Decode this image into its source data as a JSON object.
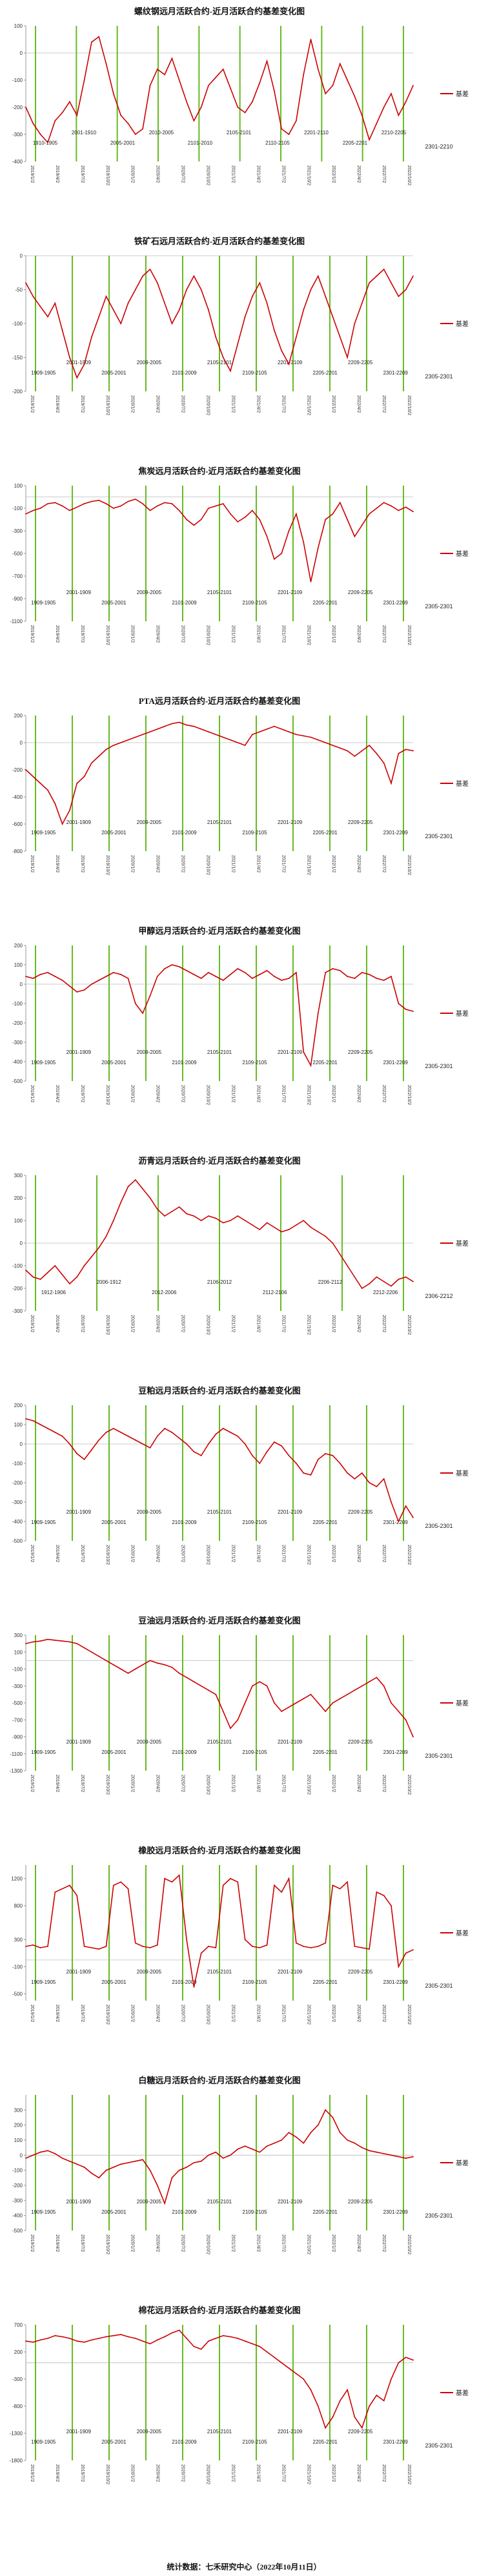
{
  "chart_data": [
    {
      "type": "line",
      "title": "螺纹钢远月活跃合约-近月活跃合约基差变化图",
      "ylim": [
        -400,
        100
      ],
      "yticks": [
        100,
        0,
        -100,
        -200,
        -300,
        -400
      ],
      "grid": false,
      "legend_position": "right",
      "series": [
        {
          "name": "基差",
          "color": "#cc0000",
          "values": [
            -200,
            -260,
            -300,
            -330,
            -250,
            -220,
            -180,
            -230,
            -100,
            40,
            60,
            -40,
            -150,
            -230,
            -260,
            -300,
            -280,
            -120,
            -60,
            -80,
            -20,
            -100,
            -180,
            -250,
            -200,
            -120,
            -90,
            -60,
            -130,
            -200,
            -220,
            -180,
            -110,
            -30,
            -140,
            -280,
            -300,
            -250,
            -80,
            50,
            -60,
            -150,
            -120,
            -40,
            -100,
            -160,
            -230,
            -320,
            -260,
            -200,
            -150,
            -230,
            -180,
            -120
          ]
        }
      ],
      "rolls": [
        "1910-1905",
        "2001-1910",
        "2005-2001",
        "2010-2005",
        "2101-2010",
        "2105-2101",
        "2110-2105",
        "2201-2110",
        "2205-2201",
        "2210-2205",
        "2301-2210"
      ]
    },
    {
      "type": "line",
      "title": "铁矿石远月活跃合约-近月活跃合约基差变化图",
      "ylim": [
        -200,
        0
      ],
      "yticks": [
        0,
        -50,
        -100,
        -150,
        -200
      ],
      "grid": false,
      "legend_position": "right",
      "series": [
        {
          "name": "基差",
          "color": "#cc0000",
          "values": [
            -40,
            -60,
            -75,
            -90,
            -70,
            -110,
            -150,
            -180,
            -160,
            -120,
            -90,
            -60,
            -80,
            -100,
            -70,
            -50,
            -30,
            -20,
            -40,
            -70,
            -100,
            -80,
            -50,
            -30,
            -50,
            -80,
            -120,
            -150,
            -170,
            -130,
            -90,
            -60,
            -40,
            -70,
            -110,
            -140,
            -160,
            -120,
            -80,
            -50,
            -30,
            -60,
            -90,
            -120,
            -150,
            -100,
            -70,
            -40,
            -30,
            -20,
            -40,
            -60,
            -50,
            -30
          ]
        }
      ],
      "rolls": [
        "1909-1905",
        "2001-1909",
        "2005-2001",
        "2009-2005",
        "2101-2009",
        "2105-2101",
        "2109-2105",
        "2201-2109",
        "2205-2201",
        "2209-2205",
        "2301-2209",
        "2305-2301"
      ]
    },
    {
      "type": "line",
      "title": "焦炭远月活跃合约-近月活跃合约基差变化图",
      "ylim": [
        -1100,
        100
      ],
      "yticks": [
        100,
        -100,
        -300,
        -500,
        -700,
        -900,
        -1100
      ],
      "grid": false,
      "legend_position": "right",
      "series": [
        {
          "name": "基差",
          "color": "#cc0000",
          "values": [
            -150,
            -120,
            -100,
            -60,
            -50,
            -80,
            -120,
            -90,
            -60,
            -40,
            -30,
            -60,
            -100,
            -80,
            -40,
            -20,
            -60,
            -120,
            -80,
            -50,
            -60,
            -120,
            -200,
            -250,
            -200,
            -100,
            -80,
            -60,
            -150,
            -220,
            -180,
            -120,
            -200,
            -350,
            -550,
            -500,
            -300,
            -150,
            -400,
            -750,
            -450,
            -200,
            -150,
            -50,
            -200,
            -350,
            -250,
            -150,
            -100,
            -50,
            -80,
            -120,
            -90,
            -130
          ]
        }
      ],
      "rolls": [
        "1909-1905",
        "2001-1909",
        "2005-2001",
        "2009-2005",
        "2101-2009",
        "2105-2101",
        "2109-2105",
        "2201-2109",
        "2205-2201",
        "2209-2205",
        "2301-2209",
        "2305-2301"
      ]
    },
    {
      "type": "line",
      "title": "PTA远月活跃合约-近月活跃合约基差变化图",
      "ylim": [
        -800,
        200
      ],
      "yticks": [
        200,
        0,
        -200,
        -400,
        -600,
        -800
      ],
      "grid": false,
      "legend_position": "right",
      "series": [
        {
          "name": "基差",
          "color": "#cc0000",
          "values": [
            -200,
            -250,
            -300,
            -350,
            -450,
            -600,
            -500,
            -300,
            -250,
            -150,
            -100,
            -50,
            -20,
            0,
            20,
            40,
            60,
            80,
            100,
            120,
            140,
            150,
            130,
            120,
            100,
            80,
            60,
            40,
            20,
            0,
            -20,
            60,
            80,
            100,
            120,
            100,
            80,
            60,
            50,
            40,
            20,
            0,
            -20,
            -40,
            -60,
            -100,
            -60,
            -20,
            -80,
            -150,
            -300,
            -80,
            -50,
            -60
          ]
        }
      ],
      "rolls": [
        "1909-1905",
        "2001-1909",
        "2005-2001",
        "2009-2005",
        "2101-2009",
        "2105-2101",
        "2109-2105",
        "2201-2109",
        "2205-2201",
        "2209-2205",
        "2301-2209",
        "2305-2301"
      ]
    },
    {
      "type": "line",
      "title": "甲醇远月活跃合约-近月活跃合约基差变化图",
      "ylim": [
        -500,
        200
      ],
      "yticks": [
        200,
        100,
        0,
        -100,
        -200,
        -300,
        -400,
        -500
      ],
      "grid": false,
      "legend_position": "right",
      "series": [
        {
          "name": "基差",
          "color": "#cc0000",
          "values": [
            40,
            30,
            50,
            60,
            40,
            20,
            -10,
            -40,
            -30,
            0,
            20,
            40,
            60,
            50,
            30,
            -100,
            -150,
            -60,
            40,
            80,
            100,
            90,
            70,
            50,
            30,
            60,
            40,
            20,
            50,
            80,
            60,
            30,
            50,
            70,
            40,
            20,
            30,
            60,
            -350,
            -420,
            -150,
            60,
            80,
            70,
            40,
            30,
            60,
            50,
            30,
            20,
            40,
            -100,
            -130,
            -140
          ]
        }
      ],
      "rolls": [
        "1909-1905",
        "2001-1909",
        "2005-2001",
        "2009-2005",
        "2101-2009",
        "2105-2101",
        "2109-2105",
        "2201-2109",
        "2205-2201",
        "2209-2205",
        "2301-2209",
        "2305-2301"
      ]
    },
    {
      "type": "line",
      "title": "沥青远月活跃合约-近月活跃合约基差变化图",
      "ylim": [
        -300,
        300
      ],
      "yticks": [
        300,
        200,
        100,
        0,
        -100,
        -200,
        -300
      ],
      "grid": false,
      "legend_position": "right",
      "series": [
        {
          "name": "基差",
          "color": "#cc0000",
          "values": [
            -120,
            -150,
            -160,
            -130,
            -100,
            -140,
            -180,
            -150,
            -100,
            -60,
            -20,
            30,
            100,
            180,
            250,
            280,
            240,
            200,
            150,
            120,
            140,
            160,
            130,
            120,
            100,
            120,
            110,
            90,
            100,
            120,
            100,
            80,
            60,
            90,
            70,
            50,
            60,
            80,
            100,
            70,
            50,
            30,
            0,
            -50,
            -100,
            -150,
            -200,
            -180,
            -150,
            -170,
            -190,
            -160,
            -150,
            -170
          ]
        }
      ],
      "rolls": [
        "1912-1906",
        "2006-1912",
        "2012-2006",
        "2106-2012",
        "2112-2106",
        "2206-2112",
        "2212-2206",
        "2306-2212"
      ]
    },
    {
      "type": "line",
      "title": "豆粕远月活跃合约-近月活跃合约基差变化图",
      "ylim": [
        -500,
        200
      ],
      "yticks": [
        200,
        100,
        0,
        -100,
        -200,
        -300,
        -400,
        -500
      ],
      "grid": false,
      "legend_position": "right",
      "series": [
        {
          "name": "基差",
          "color": "#cc0000",
          "values": [
            130,
            120,
            100,
            80,
            60,
            40,
            0,
            -50,
            -80,
            -30,
            20,
            60,
            80,
            60,
            40,
            20,
            0,
            -20,
            40,
            80,
            60,
            30,
            0,
            -40,
            -60,
            0,
            50,
            80,
            60,
            40,
            0,
            -60,
            -100,
            -40,
            10,
            -10,
            -60,
            -100,
            -150,
            -160,
            -80,
            -50,
            -60,
            -100,
            -150,
            -180,
            -150,
            -200,
            -220,
            -180,
            -300,
            -400,
            -320,
            -380
          ]
        }
      ],
      "rolls": [
        "1909-1905",
        "2001-1909",
        "2005-2001",
        "2009-2005",
        "2101-2009",
        "2105-2101",
        "2109-2105",
        "2201-2109",
        "2205-2201",
        "2209-2205",
        "2301-2209",
        "2305-2301"
      ]
    },
    {
      "type": "line",
      "title": "豆油远月活跃合约-近月活跃合约基差变化图",
      "ylim": [
        -1300,
        300
      ],
      "yticks": [
        300,
        100,
        -100,
        -300,
        -500,
        -700,
        -900,
        -1100,
        -1300
      ],
      "grid": false,
      "legend_position": "right",
      "series": [
        {
          "name": "基差",
          "color": "#cc0000",
          "values": [
            200,
            220,
            230,
            250,
            240,
            230,
            220,
            200,
            150,
            100,
            50,
            0,
            -50,
            -100,
            -150,
            -100,
            -50,
            0,
            -30,
            -50,
            -80,
            -150,
            -200,
            -250,
            -300,
            -350,
            -400,
            -600,
            -800,
            -700,
            -500,
            -300,
            -250,
            -300,
            -500,
            -600,
            -550,
            -500,
            -450,
            -400,
            -500,
            -600,
            -500,
            -450,
            -400,
            -350,
            -300,
            -250,
            -200,
            -300,
            -500,
            -600,
            -700,
            -900
          ]
        }
      ],
      "rolls": [
        "1909-1905",
        "2001-1909",
        "2005-2001",
        "2009-2005",
        "2101-2009",
        "2105-2101",
        "2109-2105",
        "2201-2109",
        "2205-2201",
        "2209-2205",
        "2301-2209",
        "2305-2301"
      ]
    },
    {
      "type": "line",
      "title": "橡胶远月活跃合约-近月活跃合约基差变化图",
      "ylim": [
        -600,
        1400
      ],
      "yticks": [
        1200,
        800,
        300,
        -100,
        -500
      ],
      "grid": false,
      "legend_position": "right",
      "series": [
        {
          "name": "基差",
          "color": "#cc0000",
          "values": [
            200,
            220,
            180,
            200,
            1000,
            1050,
            1100,
            950,
            200,
            180,
            160,
            200,
            1100,
            1150,
            1050,
            250,
            200,
            180,
            220,
            1200,
            1150,
            1250,
            300,
            -400,
            100,
            200,
            180,
            1100,
            1200,
            1150,
            300,
            200,
            180,
            220,
            1100,
            1000,
            1200,
            250,
            200,
            180,
            200,
            250,
            1100,
            1050,
            1150,
            200,
            180,
            160,
            1000,
            950,
            800,
            -100,
            100,
            150
          ]
        }
      ],
      "rolls": [
        "1909-1905",
        "2001-1909",
        "2005-2001",
        "2009-2005",
        "2101-2009",
        "2105-2101",
        "2109-2105",
        "2201-2109",
        "2205-2201",
        "2209-2205",
        "2301-2209",
        "2305-2301"
      ]
    },
    {
      "type": "line",
      "title": "白糖远月活跃合约-近月活跃合约基差变化图",
      "ylim": [
        -500,
        400
      ],
      "yticks": [
        300,
        200,
        100,
        0,
        -100,
        -200,
        -300,
        -400,
        -500
      ],
      "grid": false,
      "legend_position": "right",
      "series": [
        {
          "name": "基差",
          "color": "#cc0000",
          "values": [
            -20,
            0,
            20,
            30,
            10,
            -20,
            -40,
            -60,
            -80,
            -120,
            -150,
            -100,
            -80,
            -60,
            -50,
            -40,
            -30,
            -100,
            -200,
            -320,
            -150,
            -100,
            -80,
            -50,
            -40,
            0,
            20,
            -20,
            0,
            40,
            60,
            40,
            20,
            60,
            80,
            100,
            150,
            120,
            80,
            150,
            200,
            300,
            250,
            150,
            100,
            80,
            50,
            30,
            20,
            10,
            0,
            -10,
            -20,
            -10
          ]
        }
      ],
      "rolls": [
        "1909-1905",
        "2001-1909",
        "2005-2001",
        "2009-2005",
        "2101-2009",
        "2105-2101",
        "2109-2105",
        "2201-2109",
        "2205-2201",
        "2209-2205",
        "2301-2209",
        "2305-2301"
      ]
    },
    {
      "type": "line",
      "title": "棉花远月活跃合约-近月活跃合约基差变化图",
      "ylim": [
        -1800,
        700
      ],
      "yticks": [
        700,
        200,
        -300,
        -800,
        -1300,
        -1800
      ],
      "grid": false,
      "legend_position": "right",
      "series": [
        {
          "name": "基差",
          "color": "#cc0000",
          "values": [
            400,
            380,
            420,
            450,
            500,
            480,
            450,
            400,
            380,
            420,
            450,
            480,
            500,
            520,
            480,
            450,
            400,
            350,
            420,
            480,
            550,
            600,
            450,
            300,
            250,
            400,
            450,
            500,
            480,
            450,
            400,
            350,
            300,
            200,
            100,
            0,
            -100,
            -200,
            -300,
            -500,
            -800,
            -1200,
            -1000,
            -700,
            -500,
            -1000,
            -1200,
            -800,
            -600,
            -700,
            -300,
            0,
            100,
            50
          ]
        }
      ],
      "rolls": [
        "1909-1905",
        "2001-1909",
        "2005-2001",
        "2009-2005",
        "2101-2009",
        "2105-2101",
        "2109-2105",
        "2201-2109",
        "2205-2201",
        "2209-2205",
        "2301-2209",
        "2305-2301"
      ]
    }
  ],
  "footer": "统计数据：七禾研究中心（2022年10月11日）"
}
